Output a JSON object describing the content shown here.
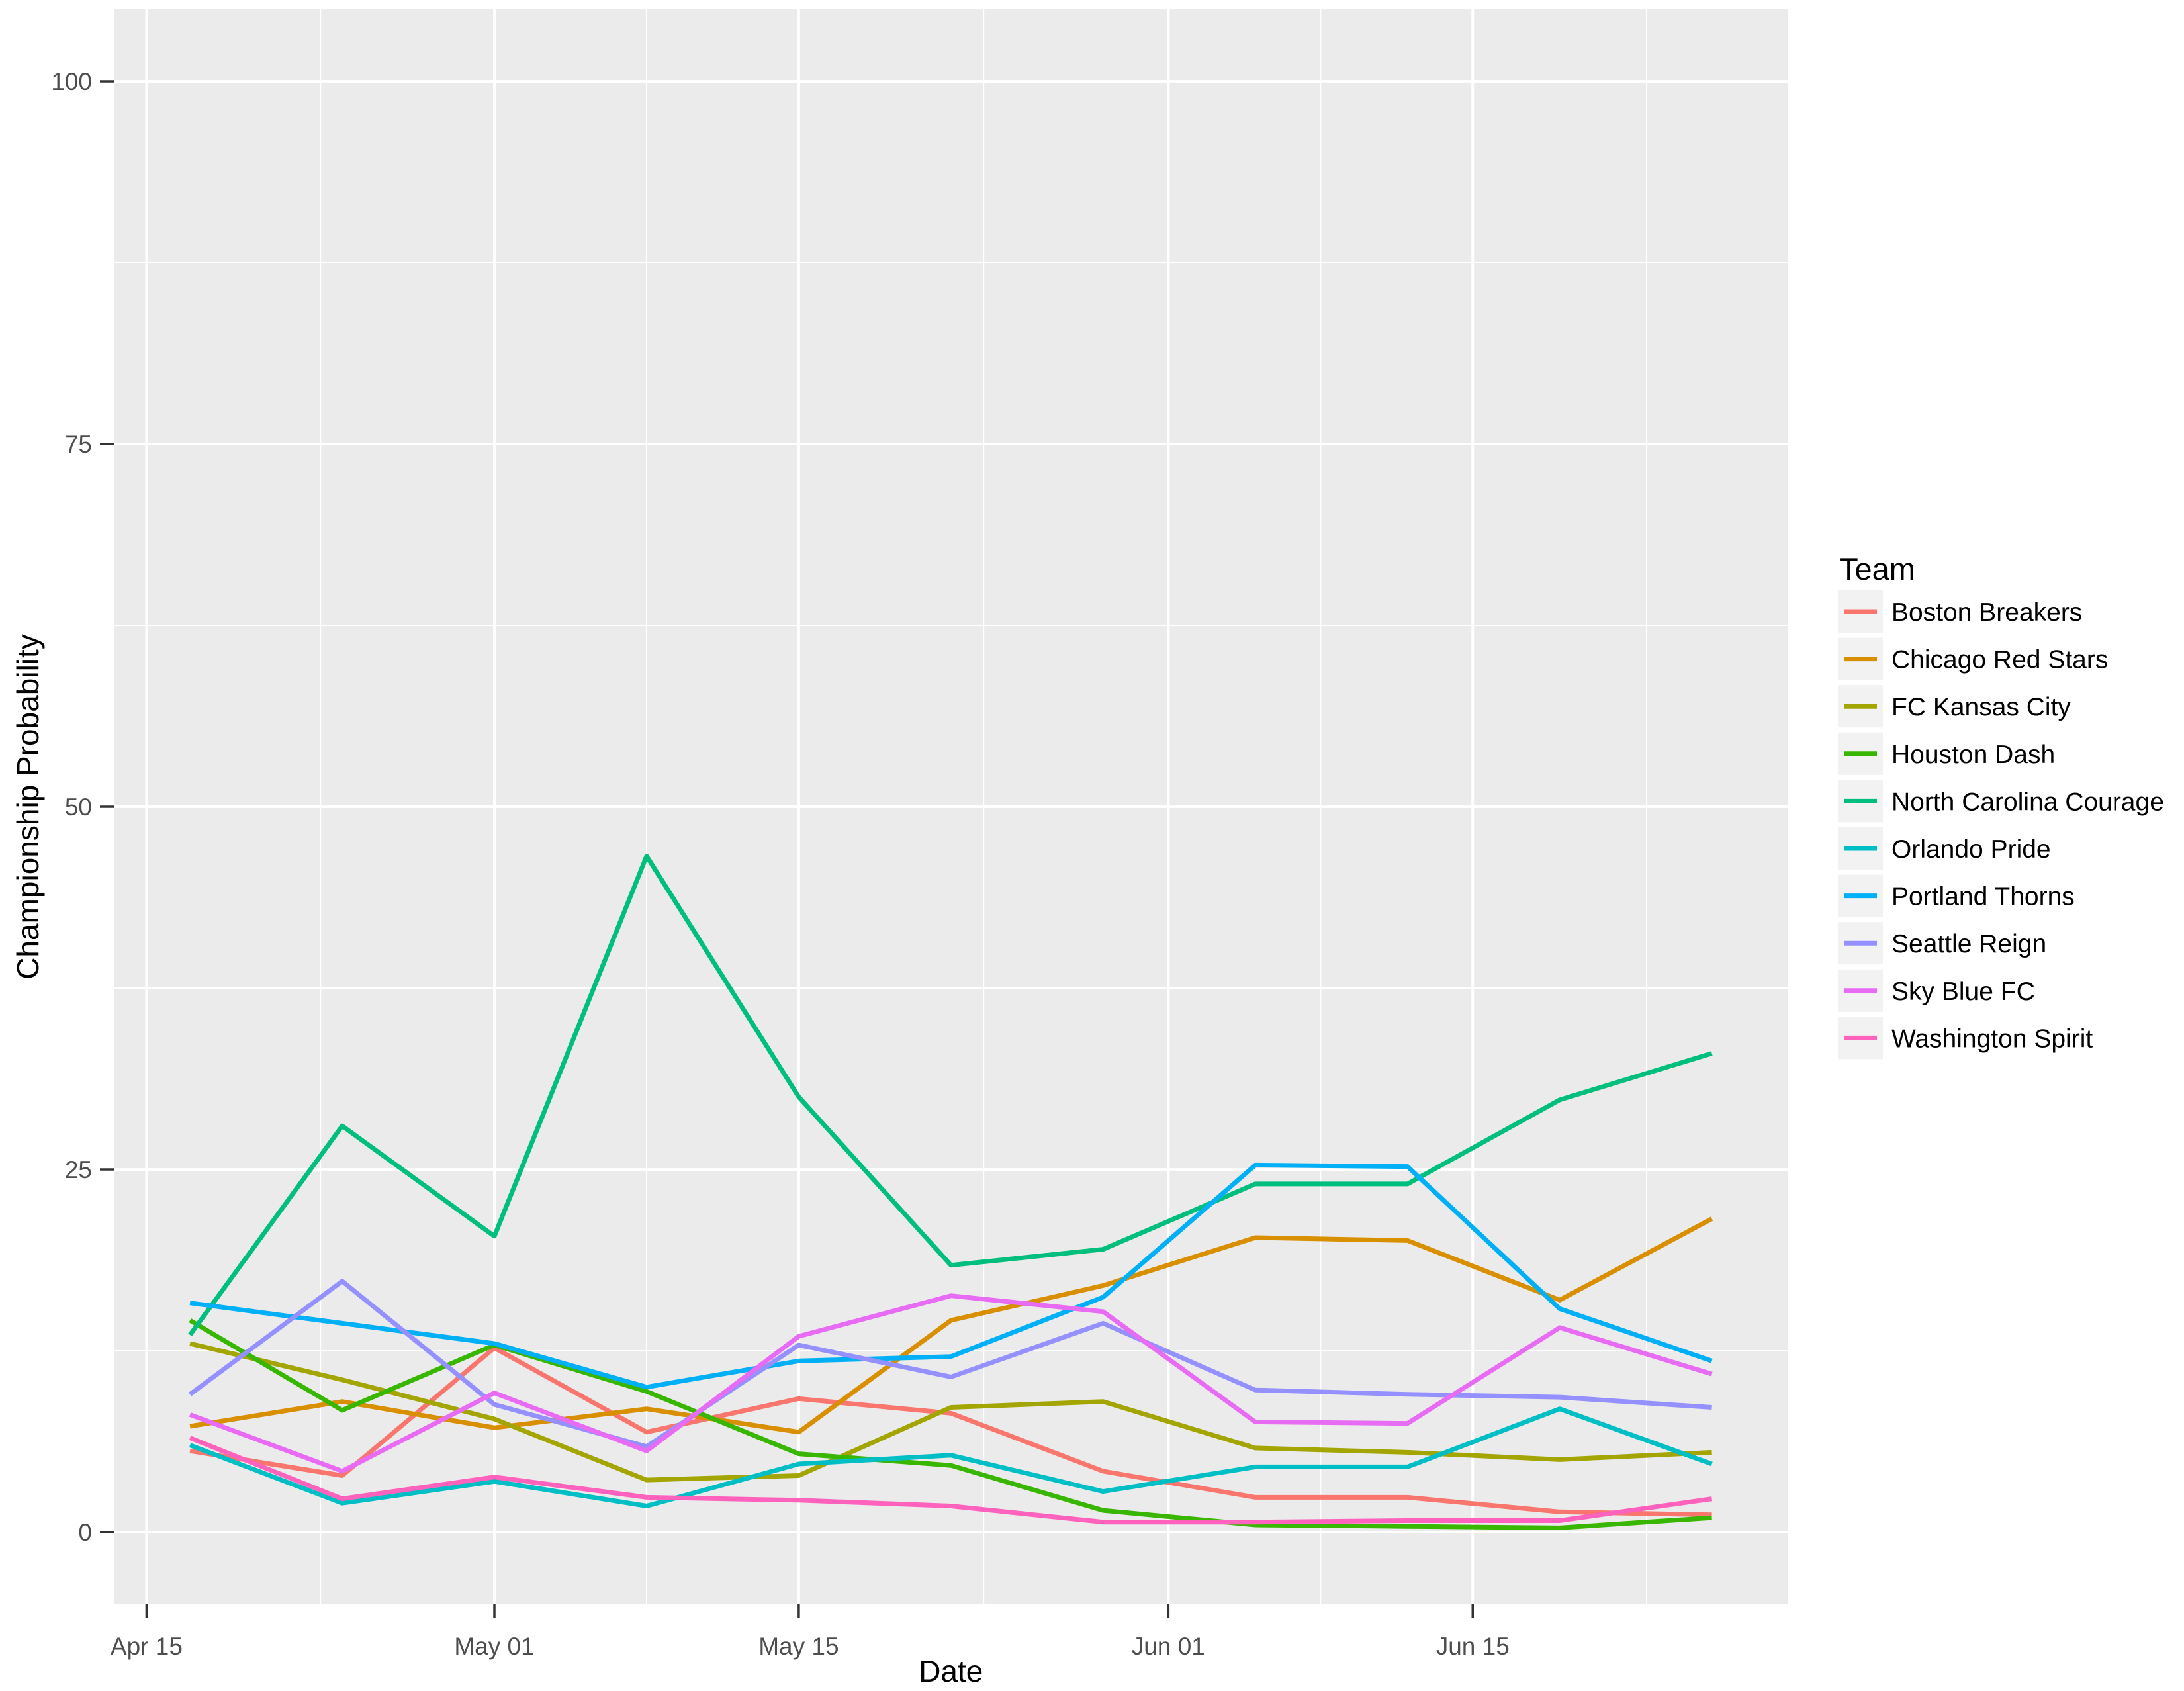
{
  "figure": {
    "background": "#FFFFFF",
    "panel_background": "#EBEBEB",
    "grid_color": "#FFFFFF",
    "tick_mark_color": "#333333",
    "axis_text_color": "#4D4D4D",
    "axis_title_color": "#000000",
    "legend_key_background": "#F2F2F2",
    "legend_text_color": "#000000"
  },
  "chart_data": {
    "type": "line",
    "title": "",
    "xlabel": "Date",
    "ylabel": "Championship Probability",
    "ylim": [
      0,
      100
    ],
    "grid": true,
    "legend_position": "right",
    "legend_title": "Team",
    "x_axis": {
      "unit": "days since Apr 15",
      "major_tick_offsets": [
        0,
        16,
        30,
        47,
        61
      ],
      "major_tick_labels": [
        "Apr 15",
        "May 01",
        "May 15",
        "Jun 01",
        "Jun 15"
      ],
      "minor_tick_offsets": [
        8,
        23,
        38.5,
        54,
        69
      ]
    },
    "y_axis": {
      "major_ticks": [
        0,
        25,
        50,
        75,
        100
      ],
      "major_tick_labels": [
        "0",
        "25",
        "50",
        "75",
        "100"
      ],
      "minor_ticks": [
        12.5,
        37.5,
        62.5,
        87.5
      ]
    },
    "x": [
      2,
      9,
      16,
      23,
      30,
      37,
      44,
      51,
      58,
      65,
      72
    ],
    "x_point_dates": [
      "Apr 17",
      "Apr 24",
      "May 01",
      "May 08",
      "May 15",
      "May 22",
      "May 29",
      "Jun 05",
      "Jun 12",
      "Jun 19",
      "Jun 26"
    ],
    "series": [
      {
        "name": "Boston Breakers",
        "color": "#F8766D",
        "values": [
          5.6,
          3.9,
          12.7,
          6.9,
          9.2,
          8.2,
          4.2,
          2.4,
          2.4,
          1.4,
          1.2
        ]
      },
      {
        "name": "Chicago Red Stars",
        "color": "#D89000",
        "values": [
          7.3,
          9.0,
          7.2,
          8.5,
          6.9,
          14.6,
          17.0,
          20.3,
          20.1,
          16.0,
          21.6
        ]
      },
      {
        "name": "FC Kansas City",
        "color": "#A3A500",
        "values": [
          13.0,
          10.5,
          7.8,
          3.6,
          3.9,
          8.6,
          9.0,
          5.8,
          5.5,
          5.0,
          5.5
        ]
      },
      {
        "name": "Houston Dash",
        "color": "#39B600",
        "values": [
          14.6,
          8.4,
          12.9,
          9.7,
          5.4,
          4.6,
          1.5,
          0.5,
          0.4,
          0.3,
          1.0
        ]
      },
      {
        "name": "North Carolina Courage",
        "color": "#00BF7D",
        "values": [
          13.6,
          28.0,
          20.4,
          46.6,
          30.0,
          18.4,
          19.5,
          24.0,
          24.0,
          29.8,
          33.0
        ]
      },
      {
        "name": "Orlando Pride",
        "color": "#00BFC4",
        "values": [
          6.0,
          2.0,
          3.5,
          1.8,
          4.7,
          5.3,
          2.8,
          4.5,
          4.5,
          8.5,
          4.7
        ]
      },
      {
        "name": "Portland Thorns",
        "color": "#00B0F6",
        "values": [
          15.8,
          14.4,
          13.0,
          10.0,
          11.8,
          12.1,
          16.2,
          25.3,
          25.2,
          15.4,
          11.8
        ]
      },
      {
        "name": "Seattle Reign",
        "color": "#9590FF",
        "values": [
          9.5,
          17.3,
          8.8,
          5.9,
          12.9,
          10.7,
          14.4,
          9.8,
          9.5,
          9.3,
          8.6
        ]
      },
      {
        "name": "Sky Blue FC",
        "color": "#E76BF3",
        "values": [
          8.1,
          4.2,
          9.6,
          5.6,
          13.5,
          16.3,
          15.2,
          7.6,
          7.5,
          14.1,
          10.9
        ]
      },
      {
        "name": "Washington Spirit",
        "color": "#FF62BC",
        "values": [
          6.5,
          2.3,
          3.8,
          2.4,
          2.2,
          1.8,
          0.7,
          0.7,
          0.8,
          0.8,
          2.3
        ]
      }
    ]
  }
}
